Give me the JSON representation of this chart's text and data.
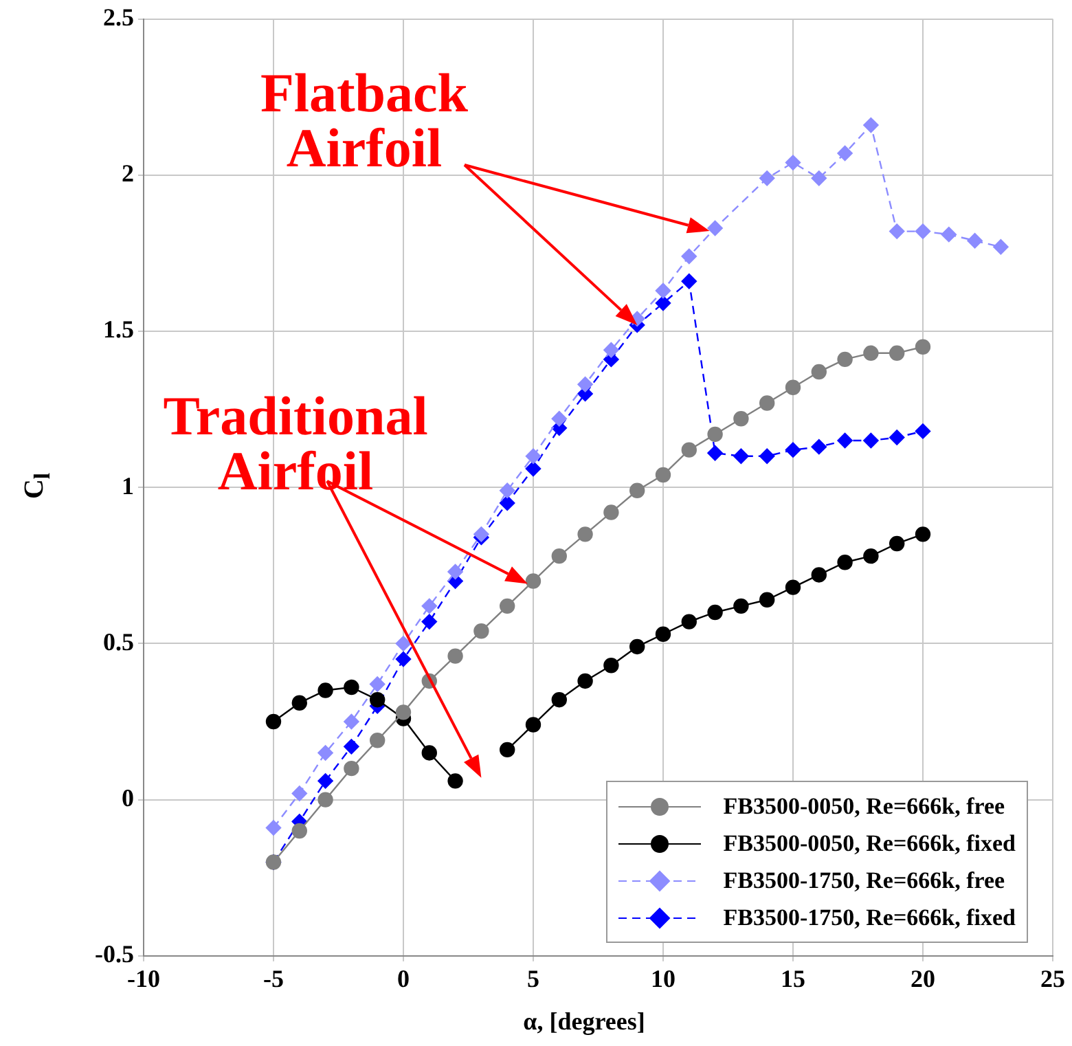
{
  "chart_data": {
    "type": "line",
    "xlabel": "α, [degrees]",
    "ylabel": "C$_{l}$",
    "x": [
      -5,
      -4,
      -3,
      -2,
      -1,
      0,
      1,
      2,
      3,
      4,
      5,
      6,
      7,
      8,
      9,
      10,
      11,
      12,
      13,
      14,
      15,
      16,
      17,
      18,
      19,
      20
    ],
    "series": [
      {
        "name": "FB3500-0050, Re=666k, free",
        "color": "#808080",
        "marker": "circle",
        "line_style": "solid",
        "values": [
          -0.2,
          -0.1,
          0.0,
          0.1,
          0.19,
          0.28,
          0.38,
          0.46,
          0.54,
          0.62,
          0.7,
          0.78,
          0.85,
          0.92,
          0.99,
          1.04,
          1.12,
          1.17,
          1.22,
          1.27,
          1.32,
          1.37,
          1.41,
          1.43,
          1.43,
          1.45
        ]
      },
      {
        "name": "FB3500-0050, Re=666k, fixed",
        "color": "#000000",
        "marker": "circle",
        "line_style": "solid",
        "values": [
          0.25,
          0.31,
          0.35,
          0.36,
          0.32,
          0.26,
          0.15,
          0.06,
          null,
          0.16,
          0.24,
          0.32,
          0.38,
          0.43,
          0.49,
          0.53,
          0.57,
          0.6,
          0.62,
          0.64,
          0.68,
          0.72,
          0.76,
          0.78,
          0.82,
          0.85
        ]
      },
      {
        "name": "FB3500-1750, Re=666k, free",
        "color": "#8c8cff",
        "marker": "diamond",
        "line_style": "dashed",
        "x": [
          -5,
          -4,
          -3,
          -2,
          -1,
          0,
          1,
          2,
          3,
          4,
          5,
          6,
          7,
          8,
          9,
          10,
          11,
          12,
          14,
          15,
          16,
          17,
          18,
          19,
          20,
          21,
          22,
          23
        ],
        "values": [
          -0.09,
          0.02,
          0.15,
          0.25,
          0.37,
          0.5,
          0.62,
          0.73,
          0.85,
          0.99,
          1.1,
          1.22,
          1.33,
          1.44,
          1.54,
          1.63,
          1.74,
          1.83,
          1.99,
          2.04,
          1.99,
          2.07,
          2.16,
          1.82,
          1.82,
          1.81,
          1.79,
          1.77
        ]
      },
      {
        "name": "FB3500-1750, Re=666k, fixed",
        "color": "#0000ff",
        "marker": "diamond",
        "line_style": "dashed",
        "values": [
          -0.2,
          -0.07,
          0.06,
          0.17,
          0.3,
          0.45,
          0.57,
          0.7,
          0.84,
          0.95,
          1.06,
          1.19,
          1.3,
          1.41,
          1.52,
          1.59,
          1.66,
          1.11,
          1.1,
          1.1,
          1.12,
          1.13,
          1.15,
          1.15,
          1.16,
          1.18
        ]
      }
    ],
    "xlim": [
      -10,
      25
    ],
    "xticks": [
      -10,
      -5,
      0,
      5,
      10,
      15,
      20,
      25
    ],
    "ylim": [
      -0.5,
      2.5
    ],
    "yticks": [
      -0.5,
      0,
      0.5,
      1,
      1.5,
      2,
      2.5
    ],
    "grid": true,
    "legend": "bottom right",
    "annotations": [
      "Flatback Airfoil",
      {
        "text": "Traditional Airfoil",
        "x": 5,
        "y": 0.7
      }
    ]
  }
}
